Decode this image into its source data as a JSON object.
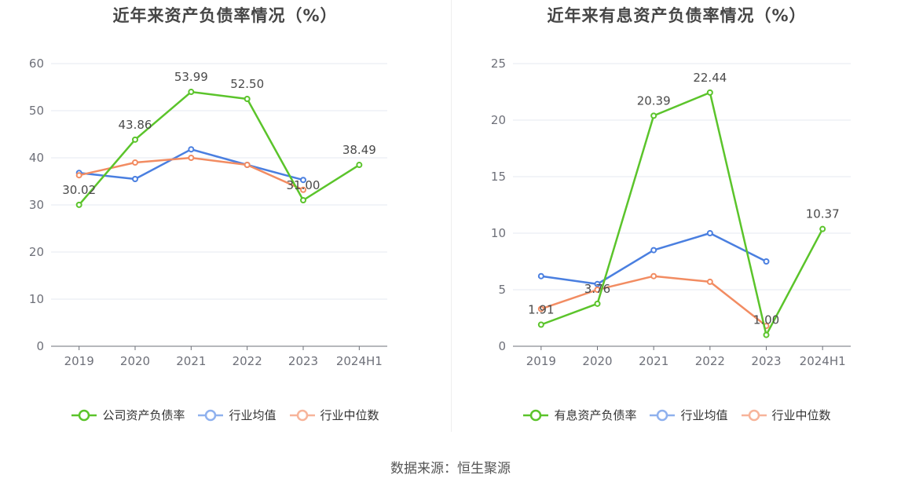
{
  "footer": {
    "source": "数据来源：恒生聚源"
  },
  "chart_data": [
    {
      "type": "line",
      "title": "近年来资产负债率情况（%）",
      "categories": [
        "2019",
        "2020",
        "2021",
        "2022",
        "2023",
        "2024H1"
      ],
      "ylim": [
        0,
        60
      ],
      "yticks": [
        0,
        10,
        20,
        30,
        40,
        50,
        60
      ],
      "grid": true,
      "legend_position": "bottom",
      "series": [
        {
          "name": "公司资产负债率",
          "color": "#5bc42b",
          "values": [
            30.02,
            43.86,
            53.99,
            52.5,
            31.0,
            38.49
          ],
          "labels": [
            "30.02",
            "43.86",
            "53.99",
            "52.50",
            "31.00",
            "38.49"
          ]
        },
        {
          "name": "行业均值",
          "color": "#4a7fe0",
          "values": [
            36.8,
            35.5,
            41.8,
            38.5,
            35.3,
            null
          ]
        },
        {
          "name": "行业中位数",
          "color": "#f28c62",
          "values": [
            36.3,
            39.0,
            40.0,
            38.5,
            33.2,
            null
          ]
        }
      ]
    },
    {
      "type": "line",
      "title": "近年来有息资产负债率情况（%）",
      "categories": [
        "2019",
        "2020",
        "2021",
        "2022",
        "2023",
        "2024H1"
      ],
      "ylim": [
        0,
        25
      ],
      "yticks": [
        0,
        5,
        10,
        15,
        20,
        25
      ],
      "grid": true,
      "legend_position": "bottom",
      "series": [
        {
          "name": "有息资产负债率",
          "color": "#5bc42b",
          "values": [
            1.91,
            3.76,
            20.39,
            22.44,
            1.0,
            10.37
          ],
          "labels": [
            "1.91",
            "3.76",
            "20.39",
            "22.44",
            "1.00",
            "10.37"
          ]
        },
        {
          "name": "行业均值",
          "color": "#4a7fe0",
          "values": [
            6.2,
            5.5,
            8.5,
            10.0,
            7.5,
            null
          ]
        },
        {
          "name": "行业中位数",
          "color": "#f28c62",
          "values": [
            3.3,
            5.0,
            6.2,
            5.7,
            1.8,
            null
          ]
        }
      ]
    }
  ]
}
